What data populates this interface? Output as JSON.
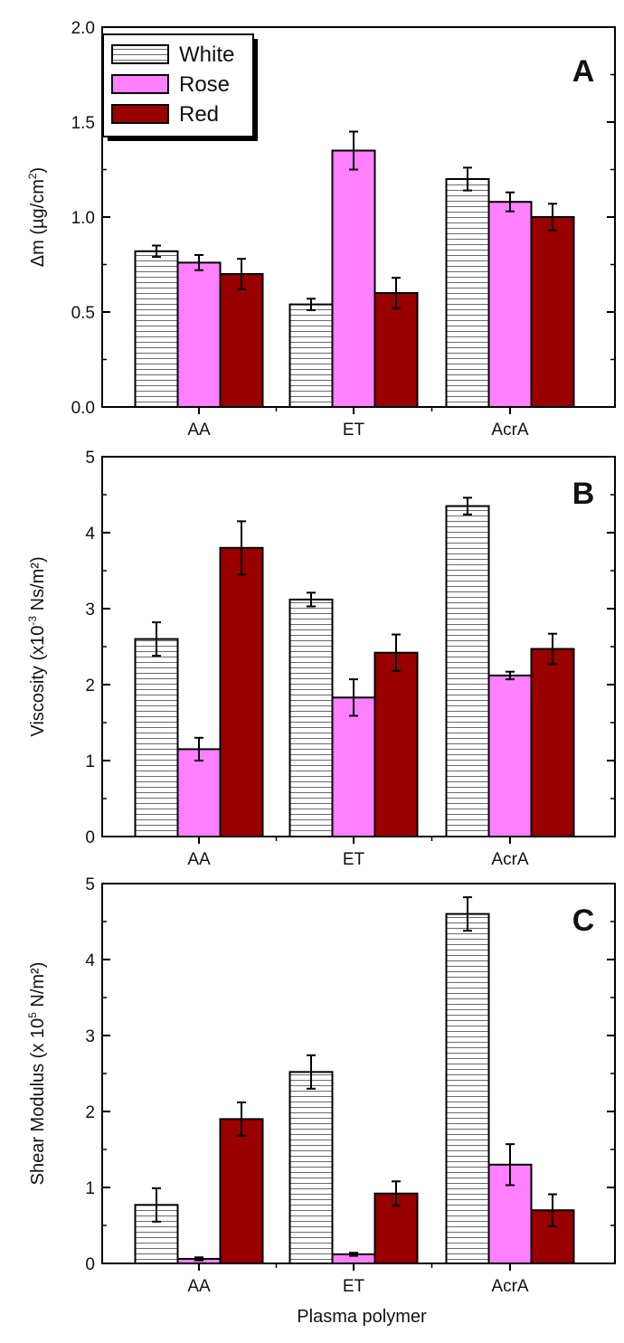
{
  "colors": {
    "White": "#ffffff",
    "Rose": "#ff80ff",
    "Red": "#990000",
    "hatch": "#666666",
    "axis": "#000000"
  },
  "legend": {
    "items": [
      "White",
      "Rose",
      "Red"
    ]
  },
  "xlabel": "Plasma polymer",
  "chart_data": [
    {
      "type": "bar",
      "panel": "A",
      "categories": [
        "AA",
        "ET",
        "AcrA"
      ],
      "series": [
        {
          "name": "White",
          "values": [
            0.82,
            0.54,
            1.2
          ],
          "errors": [
            0.03,
            0.03,
            0.06
          ]
        },
        {
          "name": "Rose",
          "values": [
            0.76,
            1.35,
            1.08
          ],
          "errors": [
            0.04,
            0.1,
            0.05
          ]
        },
        {
          "name": "Red",
          "values": [
            0.7,
            0.6,
            1.0
          ],
          "errors": [
            0.08,
            0.08,
            0.07
          ]
        }
      ],
      "ylabel": {
        "pre": "Δm (µg/cm",
        "sup": "2",
        "post": ")"
      },
      "ylim": [
        0,
        2.0
      ],
      "yticks": [
        "0.0",
        "0.5",
        "1.0",
        "1.5",
        "2.0"
      ],
      "ytick_values": [
        0,
        0.5,
        1.0,
        1.5,
        2.0
      ]
    },
    {
      "type": "bar",
      "panel": "B",
      "categories": [
        "AA",
        "ET",
        "AcrA"
      ],
      "series": [
        {
          "name": "White",
          "values": [
            2.6,
            3.12,
            4.35
          ],
          "errors": [
            0.22,
            0.09,
            0.11
          ]
        },
        {
          "name": "Rose",
          "values": [
            1.15,
            1.83,
            2.12
          ],
          "errors": [
            0.15,
            0.24,
            0.05
          ]
        },
        {
          "name": "Red",
          "values": [
            3.8,
            2.42,
            2.47
          ],
          "errors": [
            0.35,
            0.24,
            0.2
          ]
        }
      ],
      "ylabel": {
        "pre": "Viscosity (x10",
        "sup": "-3",
        "post": " Ns/m²)"
      },
      "ylim": [
        0,
        5
      ],
      "yticks": [
        "0",
        "1",
        "2",
        "3",
        "4",
        "5"
      ],
      "ytick_values": [
        0,
        1,
        2,
        3,
        4,
        5
      ]
    },
    {
      "type": "bar",
      "panel": "C",
      "categories": [
        "AA",
        "ET",
        "AcrA"
      ],
      "series": [
        {
          "name": "White",
          "values": [
            0.77,
            2.52,
            4.6
          ],
          "errors": [
            0.22,
            0.22,
            0.22
          ]
        },
        {
          "name": "Rose",
          "values": [
            0.06,
            0.12,
            1.3
          ],
          "errors": [
            0.02,
            0.02,
            0.27
          ]
        },
        {
          "name": "Red",
          "values": [
            1.9,
            0.92,
            0.7
          ],
          "errors": [
            0.22,
            0.16,
            0.21
          ]
        }
      ],
      "ylabel": {
        "pre": "Shear Modulus (x 10",
        "sup": "5",
        "post": " N/m²)"
      },
      "ylim": [
        0,
        5
      ],
      "yticks": [
        "0",
        "1",
        "2",
        "3",
        "4",
        "5"
      ],
      "ytick_values": [
        0,
        1,
        2,
        3,
        4,
        5
      ]
    }
  ]
}
